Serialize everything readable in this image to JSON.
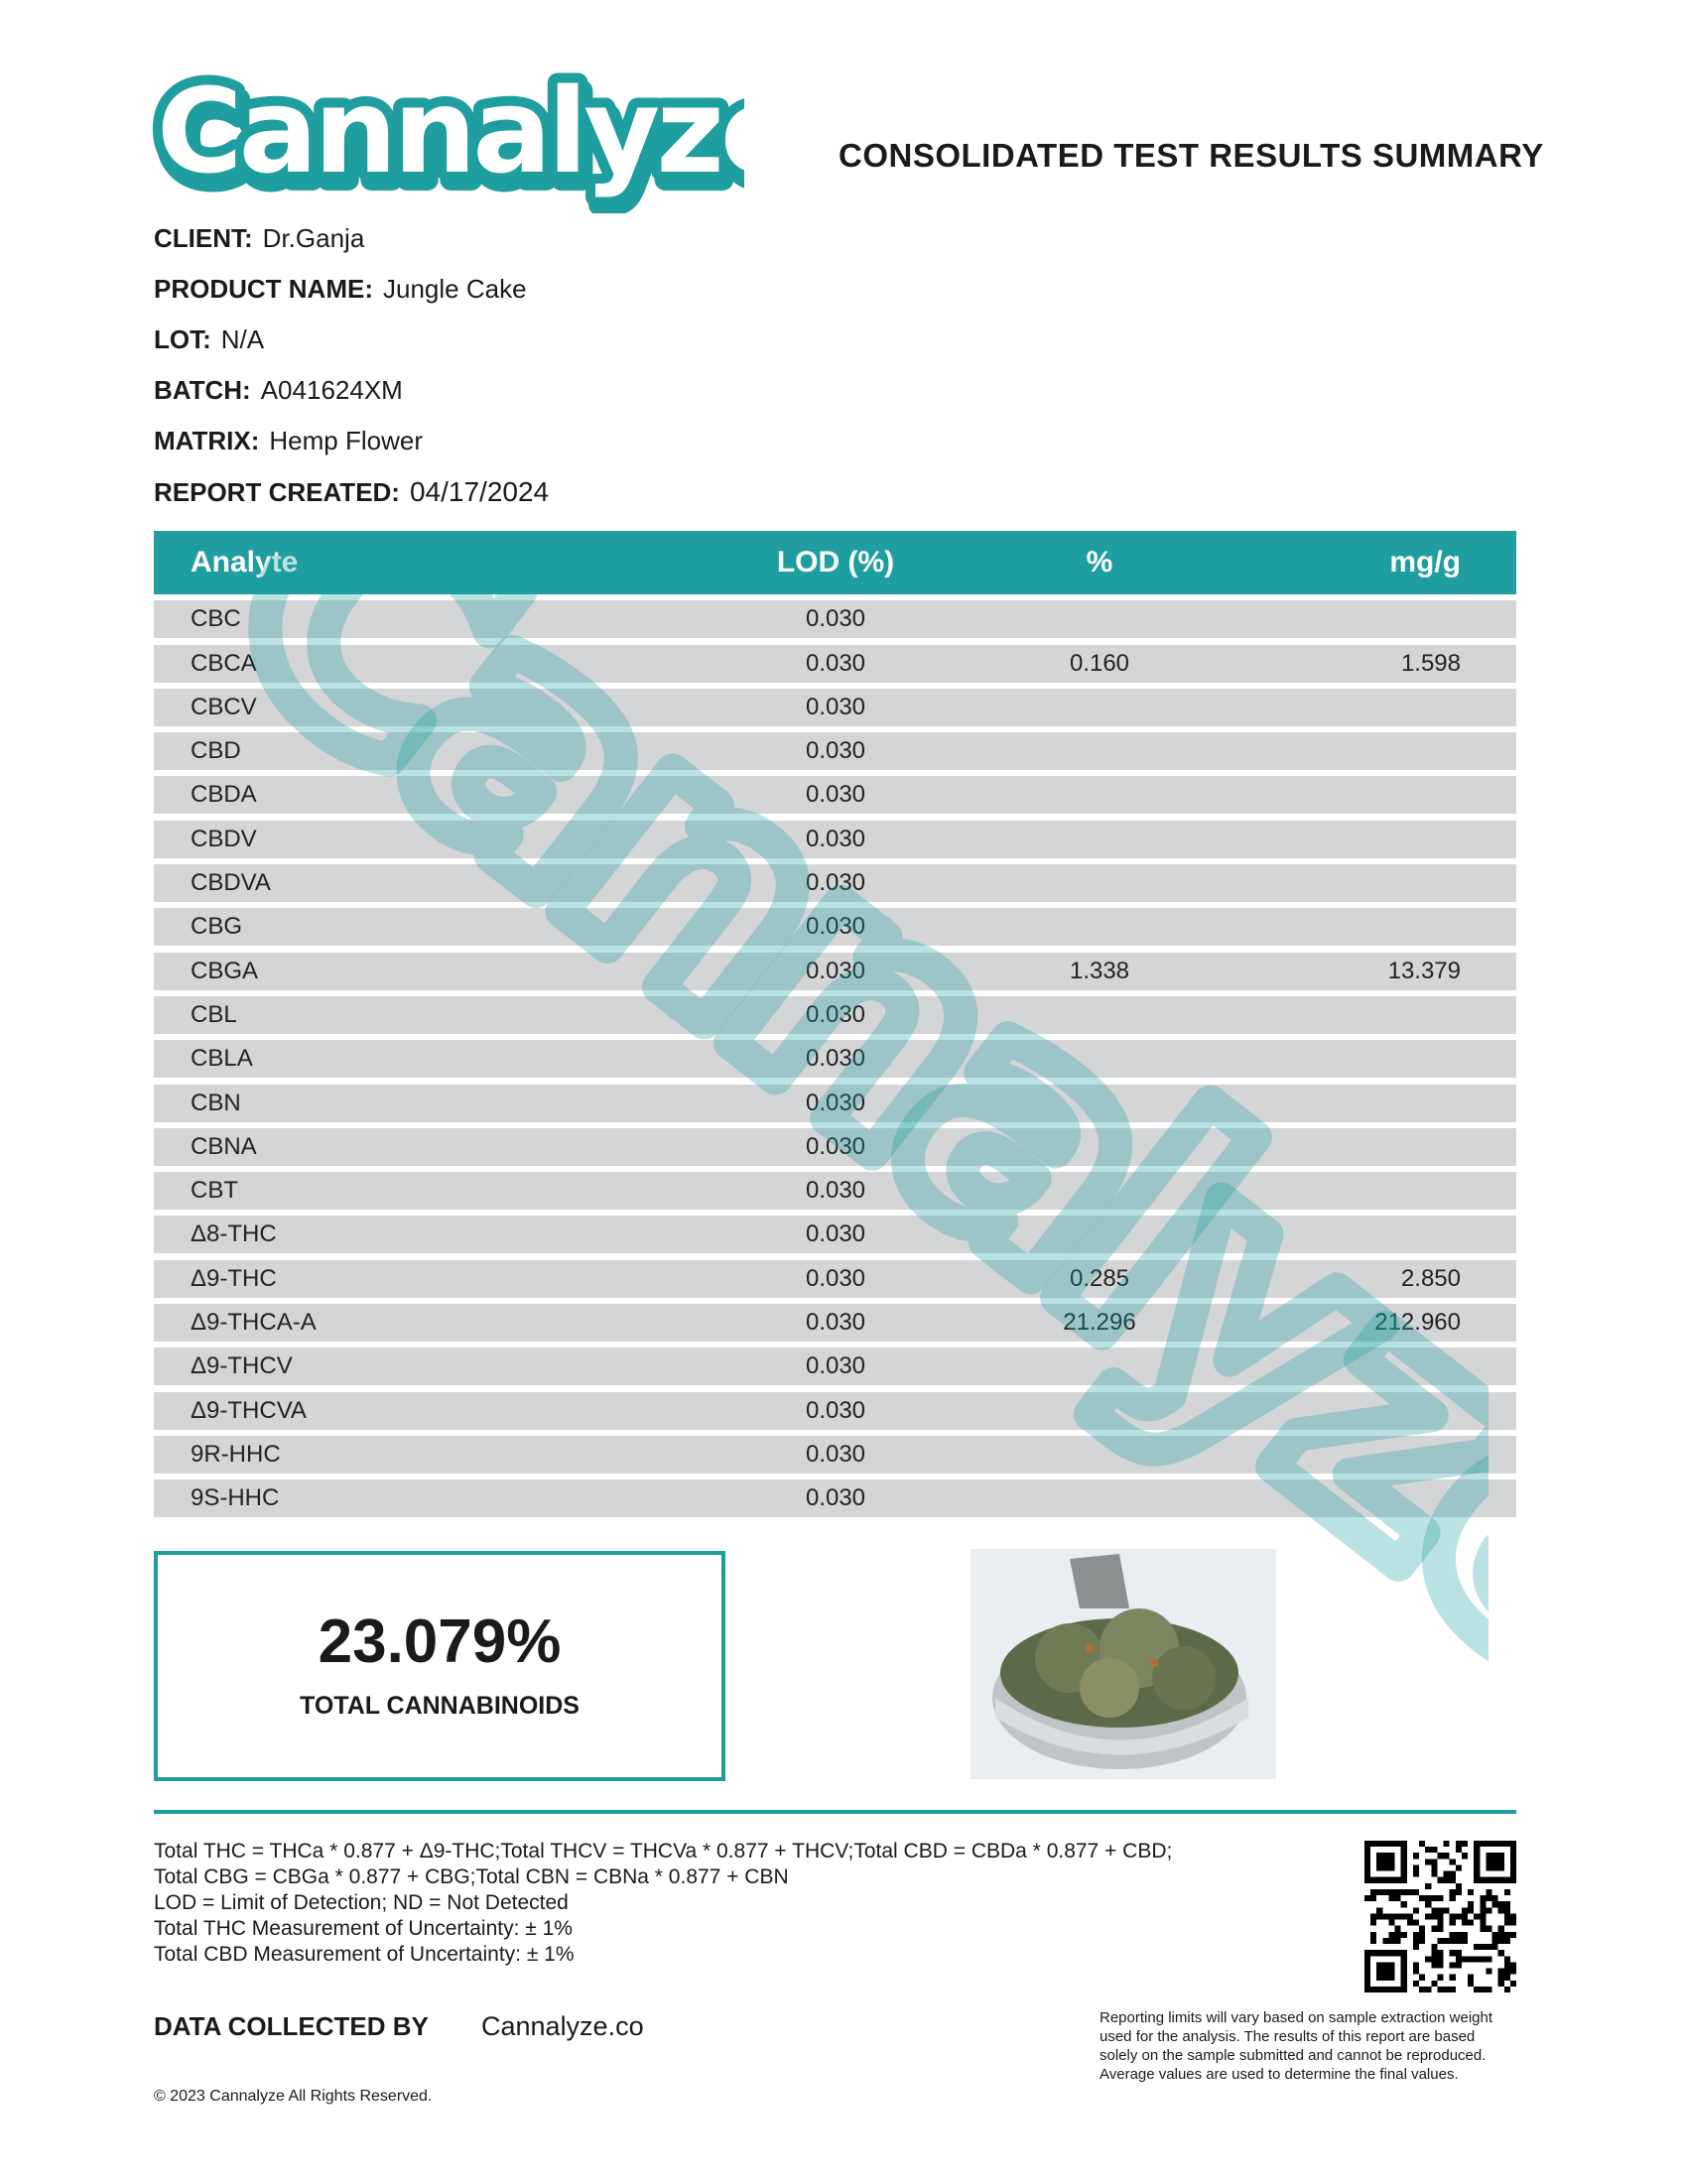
{
  "header": {
    "logo_text": "Cannalyze",
    "title": "CONSOLIDATED TEST RESULTS SUMMARY"
  },
  "info": [
    {
      "label": "CLIENT:",
      "value": "Dr.Ganja"
    },
    {
      "label": "PRODUCT NAME:",
      "value": "Jungle Cake"
    },
    {
      "label": "LOT:",
      "value": "N/A"
    },
    {
      "label": "BATCH:",
      "value": "A041624XM"
    },
    {
      "label": "MATRIX:",
      "value": "Hemp Flower"
    },
    {
      "label": "REPORT CREATED:",
      "value": "04/17/2024"
    }
  ],
  "table": {
    "headers": [
      "Analyte",
      "LOD (%)",
      "%",
      "mg/g"
    ],
    "rows": [
      [
        "CBC",
        "0.030",
        "",
        ""
      ],
      [
        "CBCA",
        "0.030",
        "0.160",
        "1.598"
      ],
      [
        "CBCV",
        "0.030",
        "",
        ""
      ],
      [
        "CBD",
        "0.030",
        "",
        ""
      ],
      [
        "CBDA",
        "0.030",
        "",
        ""
      ],
      [
        "CBDV",
        "0.030",
        "",
        ""
      ],
      [
        "CBDVA",
        "0.030",
        "",
        ""
      ],
      [
        "CBG",
        "0.030",
        "",
        ""
      ],
      [
        "CBGA",
        "0.030",
        "1.338",
        "13.379"
      ],
      [
        "CBL",
        "0.030",
        "",
        ""
      ],
      [
        "CBLA",
        "0.030",
        "",
        ""
      ],
      [
        "CBN",
        "0.030",
        "",
        ""
      ],
      [
        "CBNA",
        "0.030",
        "",
        ""
      ],
      [
        "CBT",
        "0.030",
        "",
        ""
      ],
      [
        "Δ8-THC",
        "0.030",
        "",
        ""
      ],
      [
        "Δ9-THC",
        "0.030",
        "0.285",
        "2.850"
      ],
      [
        "Δ9-THCA-A",
        "0.030",
        "21.296",
        "212.960"
      ],
      [
        "Δ9-THCV",
        "0.030",
        "",
        ""
      ],
      [
        "Δ9-THCVA",
        "0.030",
        "",
        ""
      ],
      [
        "9R-HHC",
        "0.030",
        "",
        ""
      ],
      [
        "9S-HHC",
        "0.030",
        "",
        ""
      ]
    ]
  },
  "total": {
    "value": "23.079%",
    "label": "TOTAL CANNABINOIDS"
  },
  "footer": {
    "formulas": [
      "Total THC = THCa * 0.877 + Δ9-THC;Total THCV = THCVa * 0.877 + THCV;Total CBD = CBDa * 0.877 + CBD;",
      "Total CBG = CBGa * 0.877 + CBG;Total CBN = CBNa * 0.877 + CBN",
      "LOD = Limit of Detection; ND = Not Detected",
      "Total THC Measurement of Uncertainty: ± 1%",
      "Total CBD Measurement of Uncertainty: ± 1%"
    ],
    "data_collected_label": "DATA COLLECTED BY",
    "data_collected_value": "Cannalyze.co",
    "copyright": "© 2023 Cannalyze All Rights Reserved.",
    "disclaimer": "Reporting limits will vary based on sample extraction weight used for the analysis. The results of this report are based solely on the sample submitted and cannot be reproduced. Average values are used to determine the final values."
  },
  "colors": {
    "brand": "#1f9ea0",
    "row_bg": "#d4d5d7",
    "watermark": "#9fd3d4"
  }
}
